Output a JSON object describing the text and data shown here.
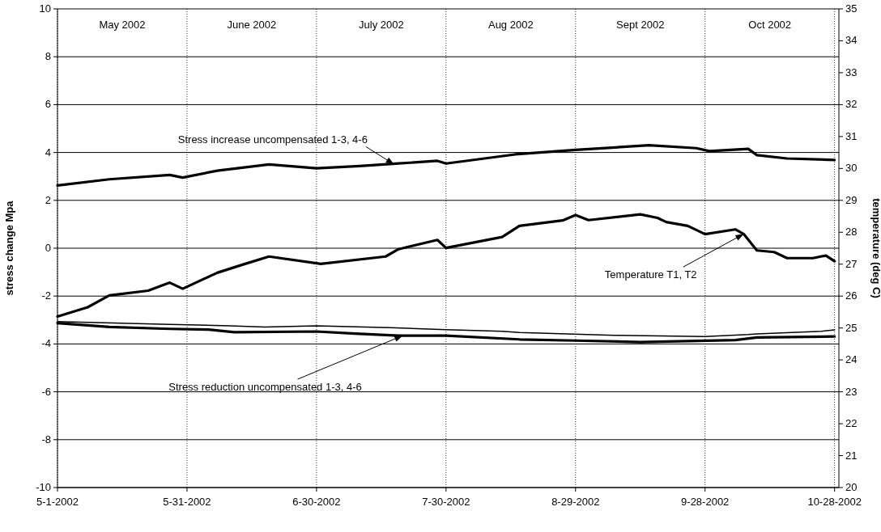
{
  "chart_data": {
    "type": "line",
    "xlabel": null,
    "ylabel": "stress change Mpa",
    "y2label": "temperature (deg C)",
    "xlim": [
      "2002-05-01",
      "2002-10-29"
    ],
    "xticks": [
      {
        "value": "2002-05-01",
        "label": "5-1-2002"
      },
      {
        "value": "2002-05-31",
        "label": "5-31-2002"
      },
      {
        "value": "2002-06-30",
        "label": "6-30-2002"
      },
      {
        "value": "2002-07-30",
        "label": "7-30-2002"
      },
      {
        "value": "2002-08-29",
        "label": "8-29-2002"
      },
      {
        "value": "2002-09-28",
        "label": "9-28-2002"
      },
      {
        "value": "2002-10-28",
        "label": "10-28-2002"
      }
    ],
    "ylim": [
      -10,
      10
    ],
    "yticks": [
      -10,
      -8,
      -6,
      -4,
      -2,
      0,
      2,
      4,
      6,
      8,
      10
    ],
    "y2lim": [
      20,
      35
    ],
    "y2ticks": [
      20,
      21,
      22,
      23,
      24,
      25,
      26,
      27,
      28,
      29,
      30,
      31,
      32,
      33,
      34,
      35
    ],
    "grid": true,
    "marker": "none",
    "line_style": "solid",
    "series": [
      {
        "color": "#000000",
        "x": [
          "2002-05-01",
          "2002-05-13",
          "2002-05-27",
          "2002-05-30",
          "2002-06-07",
          "2002-06-19",
          "2002-06-30",
          "2002-07-10",
          "2002-07-19",
          "2002-07-28",
          "2002-07-30",
          "2002-08-15",
          "2002-08-29",
          "2002-09-15",
          "2002-09-26",
          "2002-09-29",
          "2002-10-08",
          "2002-10-10",
          "2002-10-17",
          "2002-10-28"
        ],
        "values": [
          2.62,
          2.88,
          3.06,
          2.95,
          3.24,
          3.5,
          3.34,
          3.43,
          3.54,
          3.65,
          3.54,
          3.92,
          4.11,
          4.3,
          4.18,
          4.06,
          4.15,
          3.89,
          3.75,
          3.69
        ]
      },
      {
        "color": "#000000",
        "axis": "y2",
        "x": [
          "2002-05-01",
          "2002-05-08",
          "2002-05-13",
          "2002-05-22",
          "2002-05-27",
          "2002-05-30",
          "2002-06-07",
          "2002-06-13",
          "2002-06-19",
          "2002-07-01",
          "2002-07-16",
          "2002-07-19",
          "2002-07-28",
          "2002-07-30",
          "2002-08-12",
          "2002-08-16",
          "2002-08-26",
          "2002-08-29",
          "2002-09-01",
          "2002-09-13",
          "2002-09-17",
          "2002-09-19",
          "2002-09-24",
          "2002-09-28",
          "2002-10-05",
          "2002-10-07",
          "2002-10-10",
          "2002-10-14",
          "2002-10-17",
          "2002-10-23",
          "2002-10-26",
          "2002-10-28"
        ],
        "values": [
          25.36,
          25.65,
          26.02,
          26.17,
          26.42,
          26.23,
          26.73,
          26.99,
          27.24,
          27.01,
          27.24,
          27.47,
          27.76,
          27.51,
          27.85,
          28.2,
          28.37,
          28.54,
          28.38,
          28.56,
          28.45,
          28.32,
          28.2,
          27.94,
          28.09,
          27.94,
          27.43,
          27.38,
          27.19,
          27.19,
          27.27,
          27.09
        ]
      },
      {
        "color": "#000000",
        "x": [
          "2002-05-01",
          "2002-05-13",
          "2002-05-27",
          "2002-06-05",
          "2002-06-11",
          "2002-06-30",
          "2002-07-09",
          "2002-07-19",
          "2002-07-30",
          "2002-08-16",
          "2002-08-29",
          "2002-09-13",
          "2002-10-05",
          "2002-10-10",
          "2002-10-28"
        ],
        "values": [
          -3.13,
          -3.29,
          -3.37,
          -3.4,
          -3.51,
          -3.48,
          -3.57,
          -3.65,
          -3.65,
          -3.81,
          -3.86,
          -3.92,
          -3.84,
          -3.73,
          -3.69
        ]
      },
      {
        "color": "#000000",
        "x": [
          "2002-05-01",
          "2002-05-27",
          "2002-06-10",
          "2002-06-18",
          "2002-06-30",
          "2002-07-17",
          "2002-07-30",
          "2002-08-12",
          "2002-08-16",
          "2002-09-07",
          "2002-09-28",
          "2002-10-08",
          "2002-10-10",
          "2002-10-25",
          "2002-10-28"
        ],
        "values": [
          -3.07,
          -3.18,
          -3.24,
          -3.29,
          -3.24,
          -3.32,
          -3.4,
          -3.47,
          -3.52,
          -3.64,
          -3.69,
          -3.61,
          -3.58,
          -3.47,
          -3.41
        ]
      }
    ],
    "annotations": [
      "May 2002",
      "June 2002",
      "July 2002",
      "Aug 2002",
      "Sept 2002",
      "Oct 2002",
      {
        "text": "Stress increase uncompensated 1-3, 4-6",
        "x": "2002-07-18",
        "y": 3.5
      },
      {
        "text": "Temperature T1, T2",
        "x": "2002-10-07",
        "y": 0.6
      },
      {
        "text": "Stress reduction uncompensated 1-3, 4-6",
        "x": "2002-07-20",
        "y": -3.65
      }
    ]
  }
}
